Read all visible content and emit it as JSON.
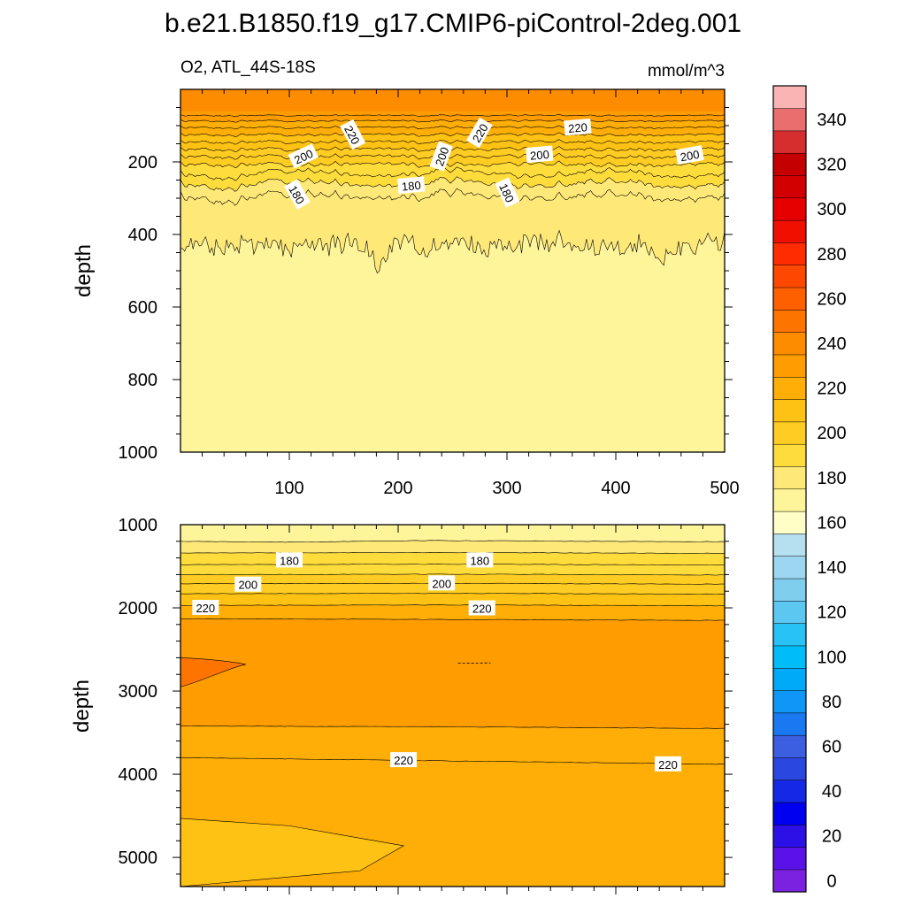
{
  "figure": {
    "title": "b.e21.B1850.f19_g17.CMIP6-piControl-2deg.001",
    "left_subtitle": "O2, ATL_44S-18S",
    "right_subtitle": "mmol/m^3"
  },
  "chart_data": [
    {
      "type": "contour",
      "panel": "upper",
      "variable": "O2",
      "units": "mmol/m^3",
      "ylabel": "depth",
      "xlabel": "",
      "xlim": [
        0,
        500
      ],
      "ylim": [
        1000,
        0
      ],
      "y_reversed": true,
      "xticks": [
        100,
        200,
        300,
        400,
        500
      ],
      "yticks": [
        200,
        400,
        600,
        800,
        1000
      ],
      "contour_levels": [
        180,
        185,
        190,
        195,
        200,
        205,
        210,
        215,
        220,
        225,
        230,
        235
      ],
      "level_depths": [
        {
          "level": 175,
          "base_depth": 430,
          "noise_amp": 45,
          "min_depth": 345
        },
        {
          "level": 180,
          "base_depth": 295,
          "noise_amp": 18
        },
        {
          "level": 185,
          "base_depth": 260,
          "noise_amp": 14
        },
        {
          "level": 190,
          "base_depth": 232,
          "noise_amp": 12
        },
        {
          "level": 195,
          "base_depth": 207,
          "noise_amp": 10
        },
        {
          "level": 200,
          "base_depth": 185,
          "noise_amp": 9
        },
        {
          "level": 205,
          "base_depth": 165,
          "noise_amp": 8
        },
        {
          "level": 210,
          "base_depth": 145,
          "noise_amp": 7
        },
        {
          "level": 215,
          "base_depth": 125,
          "noise_amp": 6
        },
        {
          "level": 220,
          "base_depth": 105,
          "noise_amp": 5
        },
        {
          "level": 225,
          "base_depth": 87,
          "noise_amp": 4
        },
        {
          "level": 230,
          "base_depth": 72,
          "noise_amp": 3
        }
      ],
      "contour_labels": [
        {
          "text": "220",
          "x": 158,
          "depth": 125,
          "rot": 62
        },
        {
          "text": "220",
          "x": 275,
          "depth": 120,
          "rot": -60
        },
        {
          "text": "220",
          "x": 365,
          "depth": 105,
          "rot": -5
        },
        {
          "text": "200",
          "x": 113,
          "depth": 185,
          "rot": -25
        },
        {
          "text": "200",
          "x": 240,
          "depth": 185,
          "rot": -70
        },
        {
          "text": "200",
          "x": 330,
          "depth": 180,
          "rot": -5
        },
        {
          "text": "200",
          "x": 468,
          "depth": 182,
          "rot": -10
        },
        {
          "text": "180",
          "x": 212,
          "depth": 265,
          "rot": -5
        },
        {
          "text": "180",
          "x": 107,
          "depth": 290,
          "rot": 60
        },
        {
          "text": "180",
          "x": 300,
          "depth": 285,
          "rot": 65
        }
      ]
    },
    {
      "type": "contour",
      "panel": "lower",
      "variable": "O2",
      "units": "mmol/m^3",
      "ylabel": "depth",
      "xlabel": "",
      "xlim": [
        0,
        500
      ],
      "ylim": [
        5350,
        1000
      ],
      "y_reversed": true,
      "xticks": [],
      "yticks": [
        1000,
        2000,
        3000,
        4000,
        5000
      ],
      "level_depths": [
        {
          "level": 175,
          "depths": [
            [
              0,
              1200
            ],
            [
              100,
              1210
            ],
            [
              230,
              1190
            ],
            [
              380,
              1200
            ],
            [
              500,
              1205
            ]
          ]
        },
        {
          "level": 180,
          "depths": [
            [
              0,
              1340
            ],
            [
              250,
              1335
            ],
            [
              500,
              1345
            ]
          ]
        },
        {
          "level": 185,
          "depths": [
            [
              0,
              1480
            ],
            [
              250,
              1475
            ],
            [
              500,
              1485
            ]
          ]
        },
        {
          "level": 190,
          "depths": [
            [
              0,
              1600
            ],
            [
              250,
              1595
            ],
            [
              500,
              1605
            ]
          ]
        },
        {
          "level": 195,
          "depths": [
            [
              0,
              1710
            ],
            [
              250,
              1705
            ],
            [
              500,
              1715
            ]
          ]
        },
        {
          "level": 200,
          "depths": [
            [
              0,
              1830
            ],
            [
              250,
              1825
            ],
            [
              500,
              1835
            ]
          ]
        },
        {
          "level": 205,
          "depths": [
            [
              0,
              1970
            ],
            [
              250,
              1965
            ],
            [
              500,
              1975
            ]
          ]
        },
        {
          "level": 210,
          "depths": [
            [
              0,
              2130
            ],
            [
              250,
              2140
            ],
            [
              500,
              2150
            ]
          ]
        },
        {
          "level": 215,
          "depths": [
            [
              0,
              3420
            ],
            [
              250,
              3430
            ],
            [
              500,
              3450
            ]
          ]
        },
        {
          "level": 220,
          "depths": [
            [
              0,
              3800
            ],
            [
              250,
              3840
            ],
            [
              500,
              3880
            ]
          ]
        }
      ],
      "high_lobe": {
        "level": 210,
        "depths": [
          [
            0,
            2600
          ],
          [
            60,
            2680
          ],
          [
            0,
            2950
          ]
        ]
      },
      "low_wedge": {
        "level": 215,
        "depths": [
          [
            0,
            4530
          ],
          [
            100,
            4620
          ],
          [
            205,
            4860
          ],
          [
            165,
            5160
          ],
          [
            0,
            5350
          ]
        ]
      },
      "contour_labels": [
        {
          "text": "180",
          "x": 100,
          "depth": 1430,
          "rot": 0
        },
        {
          "text": "180",
          "x": 275,
          "depth": 1430,
          "rot": 0
        },
        {
          "text": "200",
          "x": 62,
          "depth": 1720,
          "rot": 0
        },
        {
          "text": "200",
          "x": 240,
          "depth": 1705,
          "rot": 0
        },
        {
          "text": "220",
          "x": 23,
          "depth": 2000,
          "rot": 0
        },
        {
          "text": "220",
          "x": 277,
          "depth": 2005,
          "rot": 0
        },
        {
          "text": "220",
          "x": 205,
          "depth": 3830,
          "rot": 0
        },
        {
          "text": "220",
          "x": 448,
          "depth": 3880,
          "rot": 0
        }
      ]
    }
  ],
  "colorbar": {
    "tick_labels": [
      "0",
      "20",
      "40",
      "60",
      "80",
      "100",
      "120",
      "140",
      "160",
      "180",
      "200",
      "220",
      "240",
      "260",
      "280",
      "300",
      "320",
      "340"
    ],
    "bounds_min": 0,
    "bounds_max": 350,
    "step": 10,
    "colors": [
      "#7b22e0",
      "#5a12e8",
      "#2d10e6",
      "#0000f0",
      "#1428e6",
      "#2a48e0",
      "#3c5ee0",
      "#1a78f0",
      "#1096f6",
      "#00aaf8",
      "#00bcf8",
      "#28c2f6",
      "#5cc8f2",
      "#80ceee",
      "#9cd6f0",
      "#b6e0f0",
      "#fefec6",
      "#fef49a",
      "#fee878",
      "#fedc3c",
      "#fecc22",
      "#fec214",
      "#feae06",
      "#fe9c00",
      "#fe8c00",
      "#fe7400",
      "#fe6000",
      "#fe4800",
      "#fe2c00",
      "#f01000",
      "#e60000",
      "#d20000",
      "#c40000",
      "#d62e2e",
      "#ea6e6e",
      "#fab4b4"
    ]
  }
}
